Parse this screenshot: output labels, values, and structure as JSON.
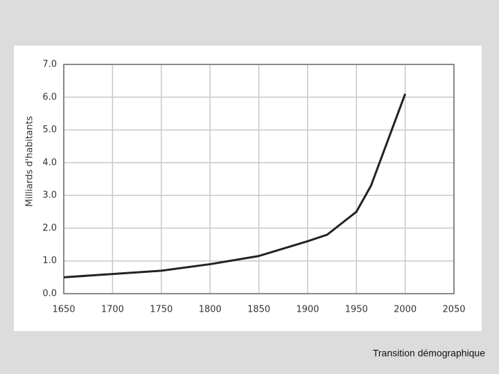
{
  "chart_data": {
    "type": "line",
    "y_label": "Milliards d'habitants",
    "x": [
      1650,
      1700,
      1750,
      1800,
      1850,
      1900,
      1920,
      1950,
      1965,
      2000
    ],
    "series": [
      {
        "name": null,
        "color": "#222222",
        "values": [
          0.5,
          0.6,
          0.7,
          0.9,
          1.15,
          1.6,
          1.8,
          2.5,
          3.3,
          6.1
        ]
      }
    ],
    "xlim": [
      1650,
      2050
    ],
    "xticks": [
      1650,
      1700,
      1750,
      1800,
      1850,
      1900,
      1950,
      2000,
      2050
    ],
    "ylim": [
      0,
      7
    ],
    "yticks": [
      {
        "value": 0,
        "label": "0.0"
      },
      {
        "value": 1,
        "label": "1.0"
      },
      {
        "value": 2,
        "label": "2.0"
      },
      {
        "value": 3,
        "label": "3.0"
      },
      {
        "value": 4,
        "label": "4.0"
      },
      {
        "value": 5,
        "label": "5.0"
      },
      {
        "value": 6,
        "label": "6.0"
      },
      {
        "value": 7,
        "label": "7.0"
      }
    ],
    "grid": true
  },
  "caption": "Transition démographique"
}
